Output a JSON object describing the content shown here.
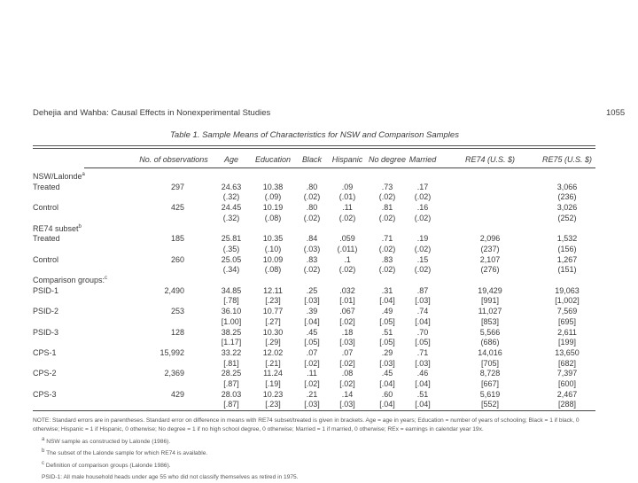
{
  "running_head": "Dehejia and Wahba: Causal Effects in Nonexperimental Studies",
  "page_number": "1055",
  "table": {
    "title": "Table 1.  Sample Means of Characteristics for NSW and Comparison Samples",
    "columns": [
      "No. of observations",
      "Age",
      "Education",
      "Black",
      "Hispanic",
      "No degree",
      "Married",
      "RE74 (U.S. $)",
      "RE75 (U.S. $)"
    ],
    "groups": [
      {
        "label": "NSW/Lalonde",
        "sup": "a",
        "rows": [
          {
            "label": "Treated",
            "n": "297",
            "means": [
              "24.63",
              "10.38",
              ".80",
              ".09",
              ".73",
              ".17",
              "",
              "3,066"
            ],
            "se": [
              "(.32)",
              "(.09)",
              "(.02)",
              "(.01)",
              "(.02)",
              "(.02)",
              "",
              "(236)"
            ]
          },
          {
            "label": "Control",
            "n": "425",
            "means": [
              "24.45",
              "10.19",
              ".80",
              ".11",
              ".81",
              ".16",
              "",
              "3,026"
            ],
            "se": [
              "(.32)",
              "(.08)",
              "(.02)",
              "(.02)",
              "(.02)",
              "(.02)",
              "",
              "(252)"
            ]
          }
        ]
      },
      {
        "label": "RE74 subset",
        "sup": "b",
        "rows": [
          {
            "label": "Treated",
            "n": "185",
            "means": [
              "25.81",
              "10.35",
              ".84",
              ".059",
              ".71",
              ".19",
              "2,096",
              "1,532"
            ],
            "se": [
              "(.35)",
              "(.10)",
              "(.03)",
              "(.011)",
              "(.02)",
              "(.02)",
              "(237)",
              "(156)"
            ]
          },
          {
            "label": "Control",
            "n": "260",
            "means": [
              "25.05",
              "10.09",
              ".83",
              ".1",
              ".83",
              ".15",
              "2,107",
              "1,267"
            ],
            "se": [
              "(.34)",
              "(.08)",
              "(.02)",
              "(.02)",
              "(.02)",
              "(.02)",
              "(276)",
              "(151)"
            ]
          }
        ]
      },
      {
        "label": "Comparison groups:",
        "sup": "c",
        "rows": [
          {
            "label": "PSID-1",
            "n": "2,490",
            "means": [
              "34.85",
              "12.11",
              ".25",
              ".032",
              ".31",
              ".87",
              "19,429",
              "19,063"
            ],
            "se": [
              "[.78]",
              "[.23]",
              "[.03]",
              "[.01]",
              "[.04]",
              "[.03]",
              "[991]",
              "[1,002]"
            ]
          },
          {
            "label": "PSID-2",
            "n": "253",
            "means": [
              "36.10",
              "10.77",
              ".39",
              ".067",
              ".49",
              ".74",
              "11,027",
              "7,569"
            ],
            "se": [
              "[1.00]",
              "[.27]",
              "[.04]",
              "[.02]",
              "[.05]",
              "[.04]",
              "[853]",
              "[695]"
            ]
          },
          {
            "label": "PSID-3",
            "n": "128",
            "means": [
              "38.25",
              "10.30",
              ".45",
              ".18",
              ".51",
              ".70",
              "5,566",
              "2,611"
            ],
            "se": [
              "[1.17]",
              "[.29]",
              "[.05]",
              "[.03]",
              "[.05]",
              "[.05]",
              "(686)",
              "[199]"
            ]
          },
          {
            "label": "CPS-1",
            "n": "15,992",
            "means": [
              "33.22",
              "12.02",
              ".07",
              ".07",
              ".29",
              ".71",
              "14,016",
              "13,650"
            ],
            "se": [
              "[.81]",
              "[.21]",
              "[.02]",
              "[.02]",
              "[.03]",
              "[.03]",
              "[705]",
              "[682]"
            ]
          },
          {
            "label": "CPS-2",
            "n": "2,369",
            "means": [
              "28.25",
              "11.24",
              ".11",
              ".08",
              ".45",
              ".46",
              "8,728",
              "7,397"
            ],
            "se": [
              "[.87]",
              "[.19]",
              "[.02]",
              "[.02]",
              "[.04]",
              "[.04]",
              "[667]",
              "[600]"
            ]
          },
          {
            "label": "CPS-3",
            "n": "429",
            "means": [
              "28.03",
              "10.23",
              ".21",
              ".14",
              ".60",
              ".51",
              "5,619",
              "2,467"
            ],
            "se": [
              "[.87]",
              "[.23]",
              "[.03]",
              "[.03]",
              "[.04]",
              "[.04]",
              "[552]",
              "[288]"
            ]
          }
        ]
      }
    ]
  },
  "notes": {
    "main": "NOTE: Standard errors are in parentheses. Standard error on difference in means with RE74 subset/treated is given in brackets. Age = age in years; Education = number of years of schooling; Black = 1 if black, 0 otherwise; Hispanic = 1 if Hispanic, 0 otherwise; No degree = 1 if no high school degree, 0 otherwise; Married = 1 if married, 0 otherwise; REx = earnings in calendar year 19x.",
    "footnotes": [
      {
        "mark": "a",
        "text": "NSW sample as constructed by Lalonde (1986)."
      },
      {
        "mark": "b",
        "text": "The subset of the Lalonde sample for which RE74 is available."
      },
      {
        "mark": "c",
        "text": "Definition of comparison groups (Lalonde 1986)."
      },
      {
        "mark": "",
        "text": "PSID-1: All male household heads under age 55 who did not classify themselves as retired in 1975."
      }
    ]
  }
}
